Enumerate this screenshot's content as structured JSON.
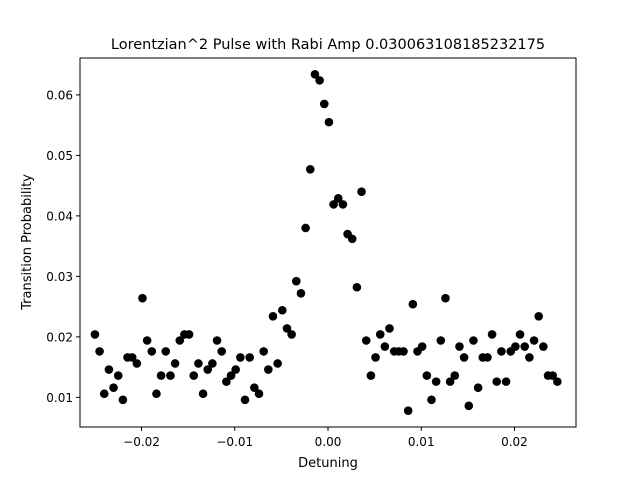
{
  "chart_data": {
    "type": "scatter",
    "title": "Lorentzian^2 Pulse with Rabi Amp 0.030063108185232175",
    "xlabel": "Detuning",
    "ylabel": "Transition Probability",
    "xlim": [
      -0.0266,
      0.0266
    ],
    "ylim": [
      0.0051,
      0.0661
    ],
    "xticks": [
      -0.02,
      -0.01,
      0.0,
      0.01,
      0.02
    ],
    "xtick_labels": [
      "−0.02",
      "−0.01",
      "0.00",
      "0.01",
      "0.02"
    ],
    "yticks": [
      0.01,
      0.02,
      0.03,
      0.04,
      0.05,
      0.06
    ],
    "ytick_labels": [
      "0.01",
      "0.02",
      "0.03",
      "0.04",
      "0.05",
      "0.06"
    ],
    "grid": false,
    "marker_color": "#000000",
    "series": [
      {
        "points": [
          [
            -0.025,
            0.0204
          ],
          [
            -0.0245,
            0.0176
          ],
          [
            -0.024,
            0.0106
          ],
          [
            -0.0235,
            0.0146
          ],
          [
            -0.023,
            0.0116
          ],
          [
            -0.0225,
            0.0136
          ],
          [
            -0.022,
            0.0096
          ],
          [
            -0.0215,
            0.0166
          ],
          [
            -0.021,
            0.0166
          ],
          [
            -0.0205,
            0.0156
          ],
          [
            -0.0199,
            0.0264
          ],
          [
            -0.0194,
            0.0194
          ],
          [
            -0.0189,
            0.0176
          ],
          [
            -0.0184,
            0.0106
          ],
          [
            -0.0179,
            0.0136
          ],
          [
            -0.0174,
            0.0176
          ],
          [
            -0.0169,
            0.0136
          ],
          [
            -0.0164,
            0.0156
          ],
          [
            -0.0159,
            0.0194
          ],
          [
            -0.0154,
            0.0204
          ],
          [
            -0.0149,
            0.0204
          ],
          [
            -0.0144,
            0.0136
          ],
          [
            -0.0139,
            0.0156
          ],
          [
            -0.0134,
            0.0106
          ],
          [
            -0.0129,
            0.0146
          ],
          [
            -0.0124,
            0.0156
          ],
          [
            -0.0119,
            0.0194
          ],
          [
            -0.0114,
            0.0176
          ],
          [
            -0.0109,
            0.0126
          ],
          [
            -0.0104,
            0.0136
          ],
          [
            -0.0099,
            0.0146
          ],
          [
            -0.0094,
            0.0166
          ],
          [
            -0.0089,
            0.0096
          ],
          [
            -0.0084,
            0.0166
          ],
          [
            -0.0079,
            0.0116
          ],
          [
            -0.0074,
            0.0106
          ],
          [
            -0.0069,
            0.0176
          ],
          [
            -0.0064,
            0.0146
          ],
          [
            -0.0059,
            0.0234
          ],
          [
            -0.0054,
            0.0156
          ],
          [
            -0.0049,
            0.0244
          ],
          [
            -0.0044,
            0.0214
          ],
          [
            -0.0039,
            0.0204
          ],
          [
            -0.0034,
            0.0292
          ],
          [
            -0.0029,
            0.0272
          ],
          [
            -0.0024,
            0.038
          ],
          [
            -0.0019,
            0.0477
          ],
          [
            -0.0014,
            0.0634
          ],
          [
            -0.0009,
            0.0624
          ],
          [
            -0.0004,
            0.0585
          ],
          [
            0.0001,
            0.0555
          ],
          [
            0.0006,
            0.0419
          ],
          [
            0.0011,
            0.0429
          ],
          [
            0.0016,
            0.0419
          ],
          [
            0.0021,
            0.037
          ],
          [
            0.0026,
            0.0362
          ],
          [
            0.0031,
            0.0282
          ],
          [
            0.0036,
            0.044
          ],
          [
            0.0041,
            0.0194
          ],
          [
            0.0046,
            0.0136
          ],
          [
            0.0051,
            0.0166
          ],
          [
            0.0056,
            0.0204
          ],
          [
            0.0061,
            0.0184
          ],
          [
            0.0066,
            0.0214
          ],
          [
            0.0071,
            0.0176
          ],
          [
            0.0076,
            0.0176
          ],
          [
            0.0081,
            0.0176
          ],
          [
            0.0086,
            0.0078
          ],
          [
            0.0091,
            0.0254
          ],
          [
            0.0096,
            0.0176
          ],
          [
            0.0101,
            0.0184
          ],
          [
            0.0106,
            0.0136
          ],
          [
            0.0111,
            0.0096
          ],
          [
            0.0116,
            0.0126
          ],
          [
            0.0121,
            0.0194
          ],
          [
            0.0126,
            0.0264
          ],
          [
            0.0131,
            0.0126
          ],
          [
            0.0136,
            0.0136
          ],
          [
            0.0141,
            0.0184
          ],
          [
            0.0146,
            0.0166
          ],
          [
            0.0151,
            0.0086
          ],
          [
            0.0156,
            0.0194
          ],
          [
            0.0161,
            0.0116
          ],
          [
            0.0166,
            0.0166
          ],
          [
            0.0171,
            0.0166
          ],
          [
            0.0176,
            0.0204
          ],
          [
            0.0181,
            0.0126
          ],
          [
            0.0186,
            0.0176
          ],
          [
            0.0191,
            0.0126
          ],
          [
            0.0196,
            0.0176
          ],
          [
            0.0201,
            0.0184
          ],
          [
            0.0206,
            0.0204
          ],
          [
            0.0211,
            0.0184
          ],
          [
            0.0216,
            0.0166
          ],
          [
            0.0221,
            0.0194
          ],
          [
            0.0226,
            0.0234
          ],
          [
            0.0231,
            0.0184
          ],
          [
            0.0236,
            0.0136
          ],
          [
            0.0241,
            0.0136
          ],
          [
            0.0246,
            0.0126
          ]
        ]
      }
    ]
  }
}
